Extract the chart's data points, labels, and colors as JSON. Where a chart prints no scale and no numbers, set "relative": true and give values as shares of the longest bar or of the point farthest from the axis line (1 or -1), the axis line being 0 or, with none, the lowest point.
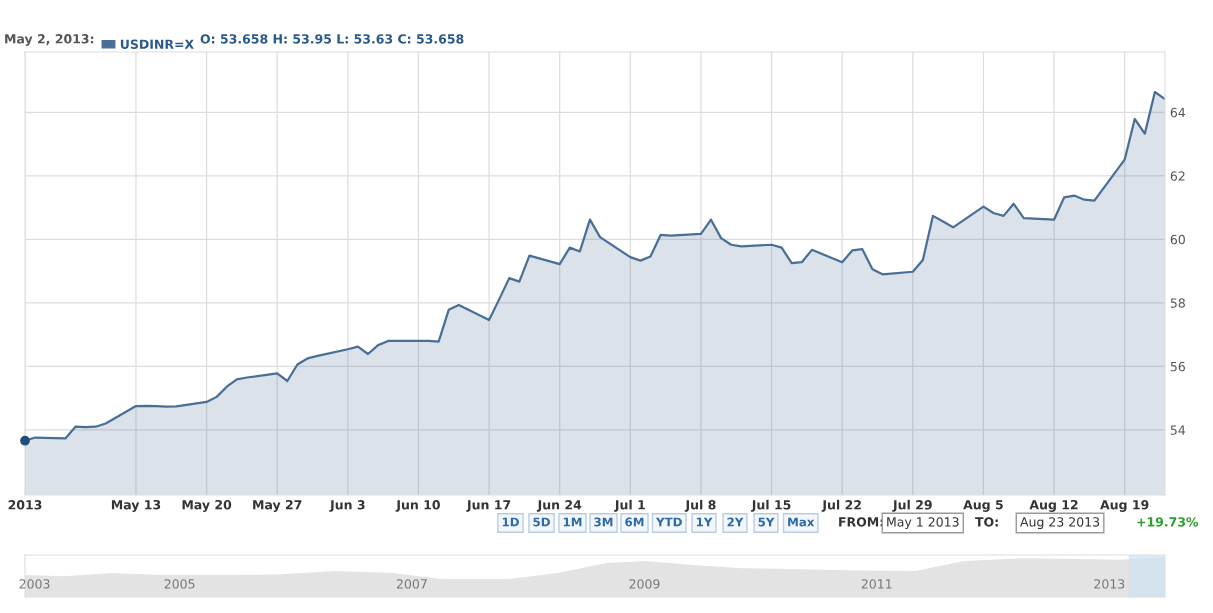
{
  "chart_data": [
    {
      "type": "area",
      "x": [
        "2013-05-02",
        "2013-05-03",
        "2013-05-06",
        "2013-05-07",
        "2013-05-08",
        "2013-05-09",
        "2013-05-10",
        "2013-05-13",
        "2013-05-14",
        "2013-05-15",
        "2013-05-16",
        "2013-05-17",
        "2013-05-20",
        "2013-05-21",
        "2013-05-22",
        "2013-05-23",
        "2013-05-24",
        "2013-05-27",
        "2013-05-28",
        "2013-05-29",
        "2013-05-30",
        "2013-05-31",
        "2013-06-03",
        "2013-06-04",
        "2013-06-05",
        "2013-06-06",
        "2013-06-07",
        "2013-06-10",
        "2013-06-11",
        "2013-06-12",
        "2013-06-13",
        "2013-06-14",
        "2013-06-17",
        "2013-06-18",
        "2013-06-19",
        "2013-06-20",
        "2013-06-21",
        "2013-06-24",
        "2013-06-25",
        "2013-06-26",
        "2013-06-27",
        "2013-06-28",
        "2013-07-01",
        "2013-07-02",
        "2013-07-03",
        "2013-07-04",
        "2013-07-05",
        "2013-07-08",
        "2013-07-09",
        "2013-07-10",
        "2013-07-11",
        "2013-07-12",
        "2013-07-15",
        "2013-07-16",
        "2013-07-17",
        "2013-07-18",
        "2013-07-19",
        "2013-07-22",
        "2013-07-23",
        "2013-07-24",
        "2013-07-25",
        "2013-07-26",
        "2013-07-29",
        "2013-07-30",
        "2013-07-31",
        "2013-08-01",
        "2013-08-02",
        "2013-08-05",
        "2013-08-06",
        "2013-08-07",
        "2013-08-08",
        "2013-08-09",
        "2013-08-12",
        "2013-08-13",
        "2013-08-14",
        "2013-08-15",
        "2013-08-16",
        "2013-08-19",
        "2013-08-20",
        "2013-08-21",
        "2013-08-22",
        "2013-08-23"
      ],
      "series": [
        {
          "name": "USDINR=X",
          "color": "#4a6f96",
          "values": [
            53.66,
            53.76,
            53.73,
            54.1,
            54.09,
            54.1,
            54.2,
            54.75,
            54.76,
            54.75,
            54.73,
            54.74,
            54.88,
            55.04,
            55.36,
            55.59,
            55.65,
            55.78,
            55.54,
            56.06,
            56.25,
            56.33,
            56.54,
            56.62,
            56.39,
            56.67,
            56.8,
            56.8,
            56.8,
            56.78,
            57.78,
            57.93,
            57.46,
            58.11,
            58.78,
            58.67,
            59.49,
            59.22,
            59.74,
            59.62,
            60.62,
            60.07,
            59.44,
            59.33,
            59.46,
            60.14,
            60.12,
            60.17,
            60.62,
            60.04,
            59.83,
            59.78,
            59.83,
            59.74,
            59.25,
            59.28,
            59.67,
            59.28,
            59.65,
            59.69,
            59.06,
            58.9,
            58.98,
            59.35,
            60.74,
            60.56,
            60.38,
            61.03,
            60.83,
            60.74,
            61.12,
            60.67,
            60.62,
            61.32,
            61.38,
            61.25,
            61.22,
            62.51,
            63.79,
            63.33,
            64.64,
            64.42
          ]
        },
        {
          "type": "scatter",
          "x": [
            "2013-05-02"
          ],
          "color": "#1f4e79",
          "values": [
            53.66
          ]
        }
      ],
      "xlim": [
        "2013-05-02",
        "2013-08-23"
      ],
      "xticks": [
        {
          "value": "2013-05-02",
          "label": "2013"
        },
        {
          "value": "2013-05-13",
          "label": "May 13"
        },
        {
          "value": "2013-05-20",
          "label": "May 20"
        },
        {
          "value": "2013-05-27",
          "label": "May 27"
        },
        {
          "value": "2013-06-03",
          "label": "Jun 3"
        },
        {
          "value": "2013-06-10",
          "label": "Jun 10"
        },
        {
          "value": "2013-06-17",
          "label": "Jun 17"
        },
        {
          "value": "2013-06-24",
          "label": "Jun 24"
        },
        {
          "value": "2013-07-01",
          "label": "Jul 1"
        },
        {
          "value": "2013-07-08",
          "label": "Jul 8"
        },
        {
          "value": "2013-07-15",
          "label": "Jul 15"
        },
        {
          "value": "2013-07-22",
          "label": "Jul 22"
        },
        {
          "value": "2013-07-29",
          "label": "Jul 29"
        },
        {
          "value": "2013-08-05",
          "label": "Aug 5"
        },
        {
          "value": "2013-08-12",
          "label": "Aug 12"
        },
        {
          "value": "2013-08-19",
          "label": "Aug 19"
        }
      ],
      "ylim": [
        51.95,
        65.9
      ],
      "yticks": [
        54,
        56,
        58,
        60,
        62,
        64
      ],
      "grid": true,
      "legend": "top left",
      "annotations": [
        "May 2, 2013:",
        "O: 53.658 H: 53.95 L: 53.63 C: 53.658",
        "1D",
        "5D",
        "1M",
        "3M",
        "6M",
        "YTD",
        "1Y",
        "2Y",
        "5Y",
        "Max",
        "FROM:",
        "May 1 2013",
        "TO:",
        "Aug 23 2013",
        "+19.73%"
      ]
    },
    {
      "type": "area",
      "relative": true,
      "x": [
        "2003-11",
        "2004-03",
        "2004-08",
        "2005-01",
        "2005-06",
        "2006-01",
        "2006-07",
        "2007-01",
        "2007-06",
        "2008-01",
        "2008-06",
        "2008-11",
        "2009-03",
        "2009-08",
        "2010-01",
        "2010-06",
        "2011-01",
        "2011-07",
        "2011-12",
        "2012-06",
        "2012-12",
        "2013-04",
        "2013-08-23"
      ],
      "series": [
        {
          "color": "#e3e3e3",
          "values": [
            0.55,
            0.52,
            0.6,
            0.55,
            0.55,
            0.56,
            0.65,
            0.6,
            0.45,
            0.45,
            0.6,
            0.85,
            0.9,
            0.8,
            0.72,
            0.7,
            0.66,
            0.65,
            0.9,
            0.97,
            0.95,
            0.93,
            1.0
          ]
        }
      ],
      "xlim": [
        "2003-11",
        "2013-08-23"
      ],
      "xticks": [
        {
          "value": "2003-12",
          "label": "2003"
        },
        {
          "value": "2005-03",
          "label": "2005"
        },
        {
          "value": "2007-03",
          "label": "2007"
        },
        {
          "value": "2009-03",
          "label": "2009"
        },
        {
          "value": "2011-03",
          "label": "2011"
        },
        {
          "value": "2013-03",
          "label": "2013"
        }
      ],
      "bands": [
        {
          "axis": "x",
          "from": "2013-05-01",
          "to": "2013-08-23",
          "color": "#cfe2f3"
        }
      ]
    }
  ]
}
